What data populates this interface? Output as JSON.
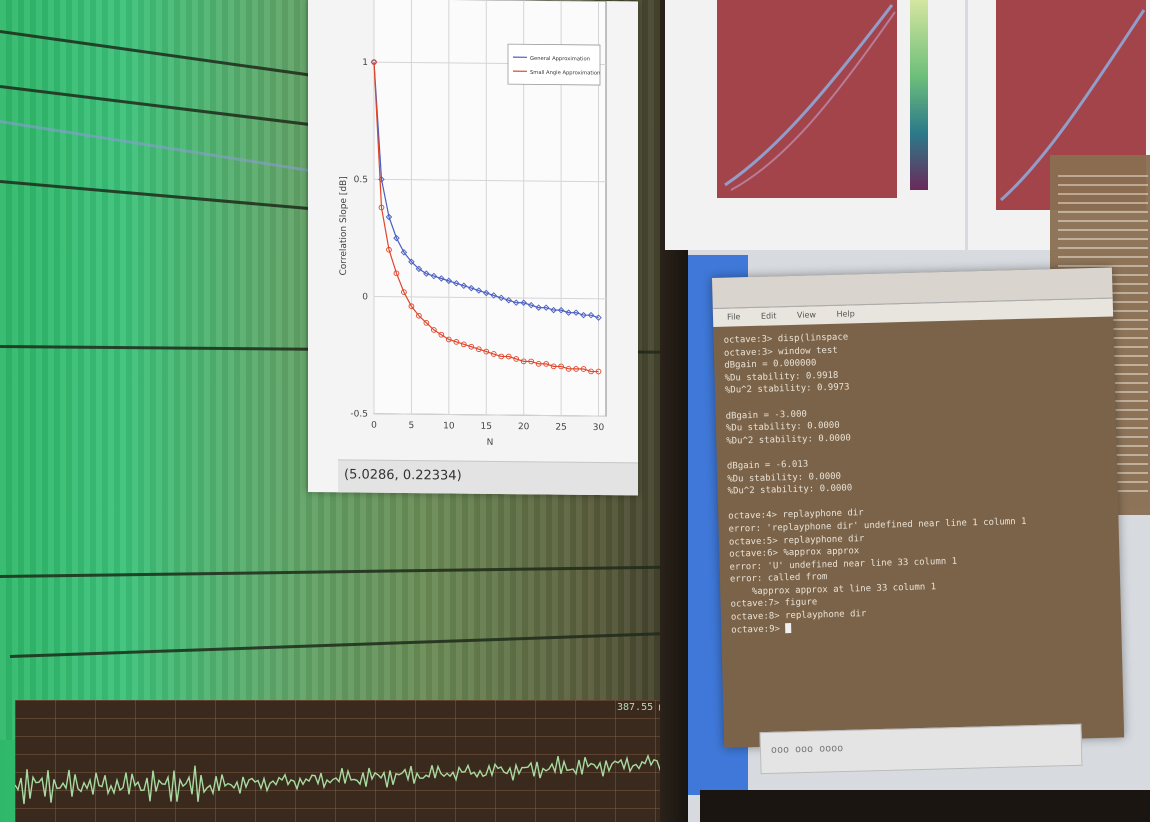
{
  "plot_window": {
    "coord_readout": "(5.0286, 0.22334)",
    "legend": [
      "General Approximation",
      "Small Angle Approximation"
    ],
    "colors": {
      "series1": "#4a5fc0",
      "series2": "#e0452a"
    }
  },
  "chart_data": {
    "type": "line",
    "title": "",
    "xlabel": "N",
    "ylabel": "Correlation Slope [dB]",
    "xlim": [
      0,
      31
    ],
    "ylim": [
      -0.5,
      1.1
    ],
    "xticks": [
      "0",
      "5",
      "10",
      "15",
      "20",
      "25",
      "30"
    ],
    "yticks": [
      "-0.5",
      "0",
      "0.5",
      "1"
    ],
    "grid": true,
    "legend_position": "top-right",
    "series": [
      {
        "name": "General Approximation",
        "x": [
          0,
          1,
          2,
          3,
          4,
          5,
          6,
          7,
          8,
          9,
          10,
          11,
          12,
          13,
          14,
          15,
          16,
          17,
          18,
          19,
          20,
          21,
          22,
          23,
          24,
          25,
          26,
          27,
          28,
          29,
          30
        ],
        "y": [
          1.0,
          0.5,
          0.34,
          0.25,
          0.19,
          0.15,
          0.12,
          0.1,
          0.09,
          0.08,
          0.07,
          0.06,
          0.05,
          0.04,
          0.03,
          0.02,
          0.01,
          0.0,
          -0.01,
          -0.02,
          -0.02,
          -0.03,
          -0.04,
          -0.04,
          -0.05,
          -0.05,
          -0.06,
          -0.06,
          -0.07,
          -0.07,
          -0.08
        ]
      },
      {
        "name": "Small Angle Approximation",
        "x": [
          0,
          1,
          2,
          3,
          4,
          5,
          6,
          7,
          8,
          9,
          10,
          11,
          12,
          13,
          14,
          15,
          16,
          17,
          18,
          19,
          20,
          21,
          22,
          23,
          24,
          25,
          26,
          27,
          28,
          29,
          30
        ],
        "y": [
          1.0,
          0.38,
          0.2,
          0.1,
          0.02,
          -0.04,
          -0.08,
          -0.11,
          -0.14,
          -0.16,
          -0.18,
          -0.19,
          -0.2,
          -0.21,
          -0.22,
          -0.23,
          -0.24,
          -0.25,
          -0.25,
          -0.26,
          -0.27,
          -0.27,
          -0.28,
          -0.28,
          -0.29,
          -0.29,
          -0.3,
          -0.3,
          -0.3,
          -0.31,
          -0.31
        ]
      }
    ]
  },
  "terminal": {
    "title": "",
    "menu": [
      "File",
      "Edit",
      "View",
      "Help"
    ],
    "lines": [
      "octave:3> disp(linspace",
      "octave:3> window test",
      "dBgain = 0.000000",
      "%Du stability: 0.9918",
      "%Du^2 stability: 0.9973",
      "",
      "dBgain = -3.000",
      "%Du stability: 0.0000",
      "%Du^2 stability: 0.0000",
      "",
      "dBgain = -6.013",
      "%Du stability: 0.0000",
      "%Du^2 stability: 0.0000",
      "",
      "octave:4> replayphone dir",
      "error: 'replayphone dir' undefined near line 1 column 1",
      "octave:5> replayphone dir",
      "octave:6> %approx approx",
      "error: 'U' undefined near line 33 column 1",
      "error: called from",
      "    %approx approx at line 33 column 1",
      "octave:7> figure",
      "octave:8> replayphone dir",
      "octave:9> "
    ]
  },
  "wave": {
    "readout": "387.55  ■■"
  },
  "taskbar": {
    "text": "ooo ooo oooo"
  }
}
